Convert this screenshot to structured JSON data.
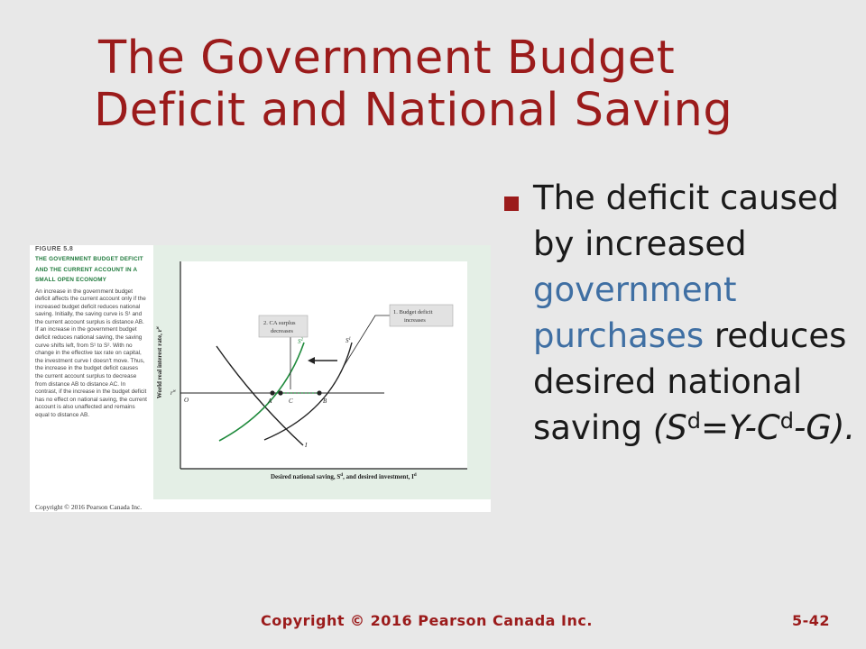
{
  "slide": {
    "title_line1": "The Government Budget",
    "title_line2": "Deficit and National Saving",
    "bullet": {
      "part1": "The deficit caused by increased",
      "highlight": "government purchases",
      "part2": "reduces desired national saving",
      "formula_open": "(S",
      "formula_sup1": "d",
      "formula_mid": "=Y-C",
      "formula_sup2": "d",
      "formula_end": "-G).",
      "highlight_color": "#3f6fa3"
    },
    "footer_copyright": "Copyright © 2016 Pearson Canada Inc.",
    "footer_page": "5-42"
  },
  "figure": {
    "number": "FIGURE 5.8",
    "title": "THE GOVERNMENT BUDGET DEFICIT AND THE CURRENT ACCOUNT IN A SMALL OPEN ECONOMY",
    "body": "An increase in the government budget deficit affects the current account only if the increased budget deficit reduces national saving. Initially, the saving curve is S¹ and the current account surplus is distance AB. If an increase in the government budget deficit reduces national saving, the saving curve shifts left, from S¹ to S². With no change in the effective tax rate on capital, the investment curve I doesn't move. Thus, the increase in the budget deficit causes the current account surplus to decrease from distance AB to distance AC. In contrast, if the increase in the budget deficit has no effect on national saving, the current account is also unaffected and remains equal to distance AB.",
    "copyright": "Copyright © 2016 Pearson Canada Inc.",
    "y_axis_label": "World real interest rate, r",
    "y_axis_sup": "w",
    "x_axis_label": "Desired national saving, S",
    "x_axis_label_mid": ", and desired investment, I",
    "x_axis_sup1": "d",
    "x_axis_sup2": "d",
    "rate_label": "r",
    "rate_sup": "w",
    "origin_label": "O",
    "point_a": "A",
    "point_c": "C",
    "point_b": "B",
    "curve_s2": "S",
    "curve_s2_sup": "2",
    "curve_s1": "S",
    "curve_s1_sup": "1",
    "curve_i": "I",
    "callout_ca_line1": "2. CA surplus",
    "callout_ca_line2": "decreases",
    "callout_deficit_line1": "1. Budget deficit",
    "callout_deficit_line2": "increases",
    "colors": {
      "title": "#9b1b1b",
      "s2_curve": "#1f8a3c",
      "caption_title": "#1f7a3c",
      "panel_bg": "#e4efe6"
    }
  }
}
